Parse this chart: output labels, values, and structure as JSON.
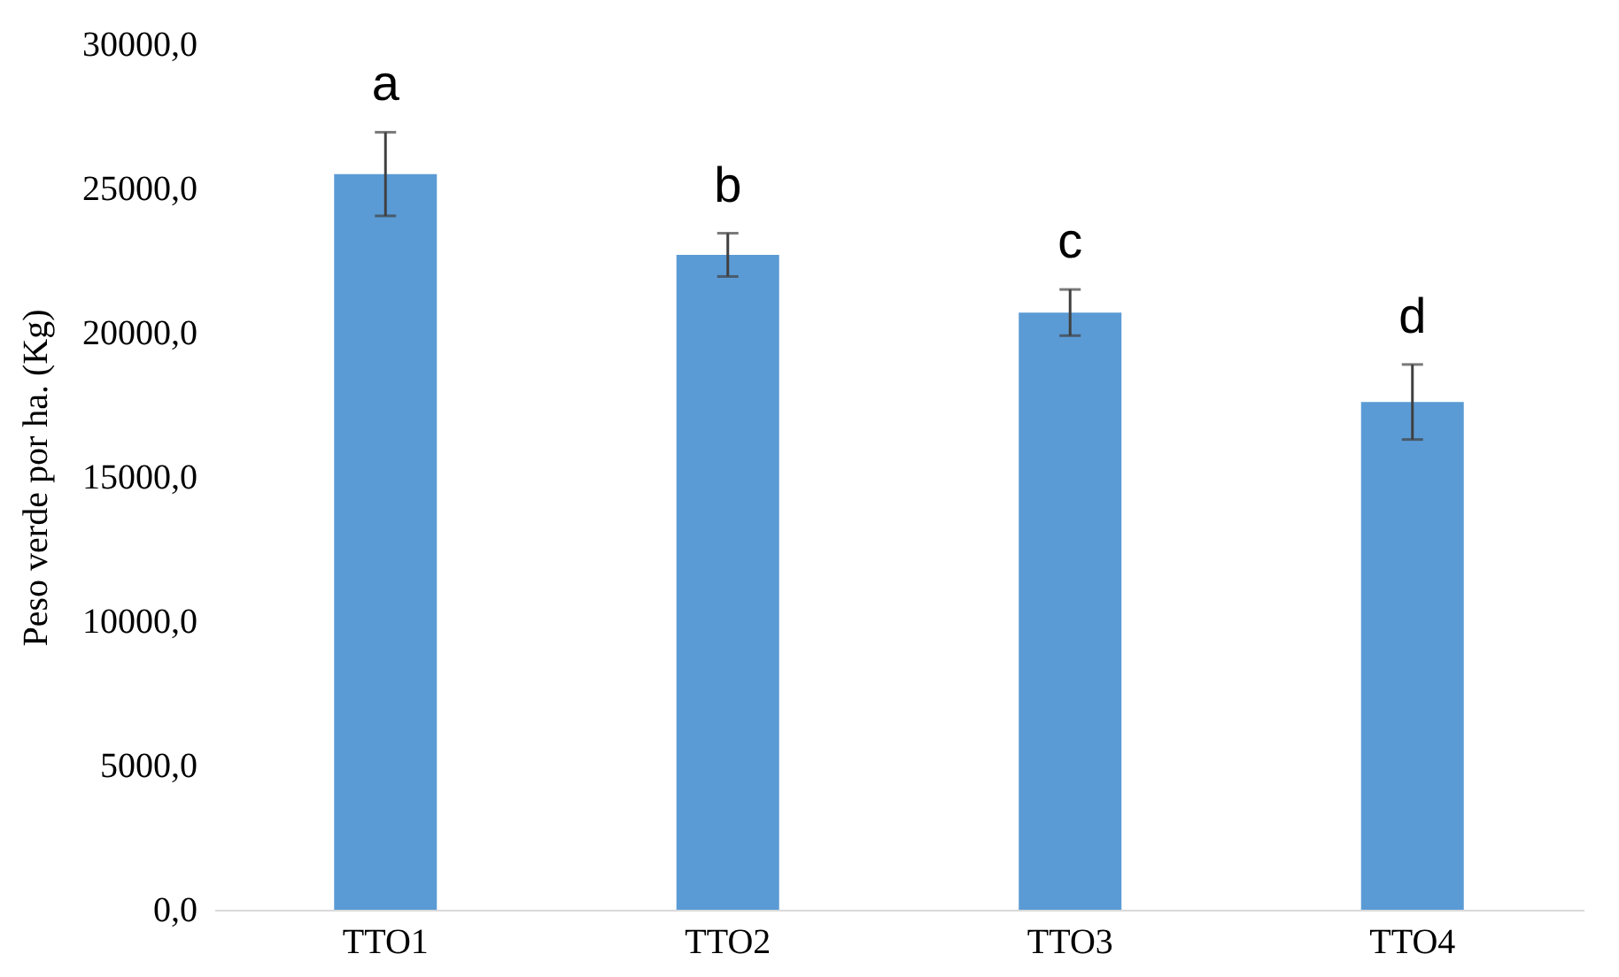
{
  "chart_data": {
    "type": "bar",
    "ylabel": "Peso verde por ha. (Kg)",
    "categories": [
      "TTO1",
      "TTO2",
      "TTO3",
      "TTO4"
    ],
    "values": [
      25500,
      22700,
      20700,
      17600
    ],
    "errors": [
      1450,
      750,
      800,
      1300
    ],
    "color": "#5b9bd5",
    "ylim": [
      0,
      30000
    ],
    "yticks": [
      {
        "value": 0,
        "label": "0,0"
      },
      {
        "value": 5000,
        "label": "5000,0"
      },
      {
        "value": 10000,
        "label": "10000,0"
      },
      {
        "value": 15000,
        "label": "15000,0"
      },
      {
        "value": 20000,
        "label": "20000,0"
      },
      {
        "value": 25000,
        "label": "25000,0"
      },
      {
        "value": 30000,
        "label": "30000,0"
      }
    ],
    "grid": false,
    "annotations": [
      "a",
      "b",
      "c",
      "d"
    ]
  }
}
